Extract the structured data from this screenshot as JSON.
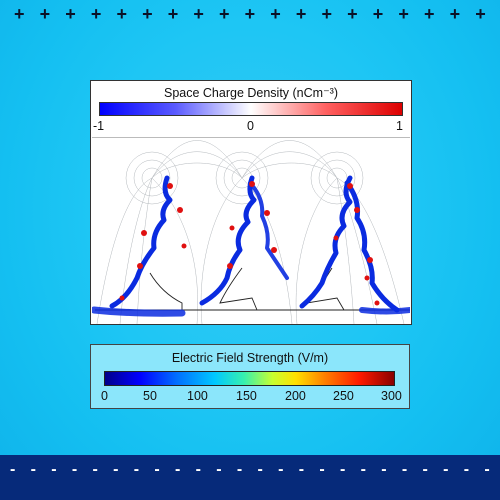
{
  "anode": {
    "sign": "+",
    "count": 19
  },
  "cathode": {
    "sign": "-",
    "count": 24
  },
  "space_charge": {
    "title": "Space Charge Density (nCm⁻³)",
    "min_label": "-1",
    "mid_label": "0",
    "max_label": "1"
  },
  "field_strength": {
    "title": "Electric Field Strength (V/m)",
    "ticks": [
      "0",
      "50",
      "100",
      "150",
      "200",
      "250",
      "300"
    ]
  },
  "colors": {
    "background": "#1ec6f4",
    "ground": "#062a7a",
    "negative_charge": "#0a2be0",
    "positive_charge": "#e01010"
  }
}
